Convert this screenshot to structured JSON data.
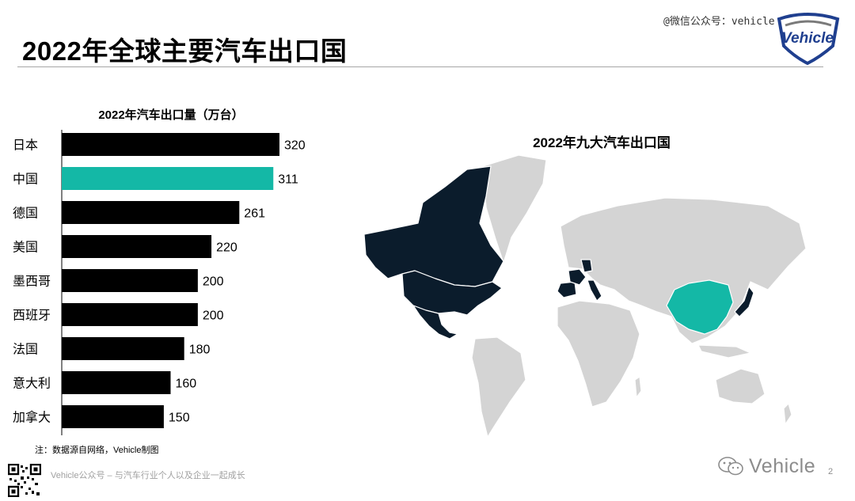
{
  "header": {
    "title": "2022年全球主要汽车出口国",
    "watermark": "@微信公众号：vehicle",
    "logo_text": "Vehicle"
  },
  "chart_data": [
    {
      "type": "bar",
      "orientation": "horizontal",
      "title": "2022年汽车出口量（万台）",
      "categories": [
        "日本",
        "中国",
        "德国",
        "美国",
        "墨西哥",
        "西班牙",
        "法国",
        "意大利",
        "加拿大"
      ],
      "values": [
        320,
        311,
        261,
        220,
        200,
        200,
        180,
        160,
        150
      ],
      "data_labels": [
        "320",
        "311",
        "261",
        "220",
        "200",
        "200",
        "180",
        "160",
        "150"
      ],
      "highlight_category": "中国",
      "colors": {
        "default": "#000000",
        "highlight": "#14b8a6"
      },
      "xlim": [
        0,
        320
      ]
    },
    {
      "type": "map",
      "title": "2022年九大汽车出口国",
      "highlighted_countries": [
        "日本",
        "中国",
        "德国",
        "美国",
        "墨西哥",
        "西班牙",
        "法国",
        "意大利",
        "加拿大"
      ],
      "colors": {
        "china": "#14b8a6",
        "others_highlighted": "#0b1c2c",
        "base": "#d4d4d4"
      }
    }
  ],
  "footer": {
    "note": "注：数据源自网络，Vehicle制图",
    "slogan": "Vehicle公众号 – 与汽车行业个人以及企业一起成长",
    "brand": "Vehicle",
    "page_number": "2"
  }
}
